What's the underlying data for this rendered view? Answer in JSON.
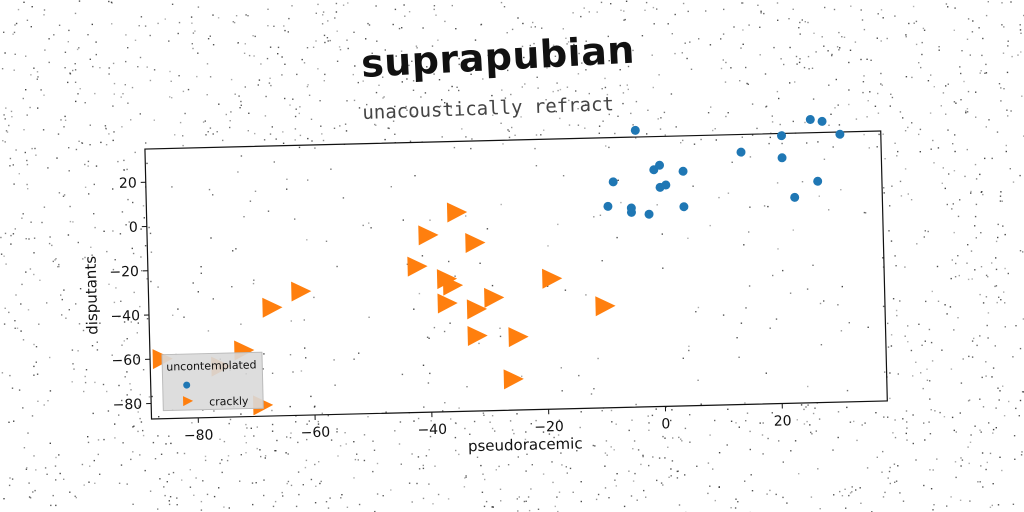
{
  "chart_data": {
    "type": "scatter",
    "title": "suprapubian",
    "subtitle": "unacoustically refract",
    "xlabel": "pseudoracemic",
    "ylabel": "disputants",
    "xlim": [
      -88,
      38
    ],
    "ylim": [
      -87,
      35
    ],
    "xticks": [
      -80,
      -60,
      -40,
      -20,
      0,
      20
    ],
    "yticks": [
      20,
      0,
      -20,
      -40,
      -60,
      -80
    ],
    "grid": false,
    "legend": {
      "title": "uncontemplated",
      "placement": "lower-left"
    },
    "series": [
      {
        "name": "",
        "marker": "circle",
        "color": "#1f77b4",
        "points": [
          [
            -4,
            38
          ],
          [
            -8,
            15
          ],
          [
            -9,
            4
          ],
          [
            -5,
            3
          ],
          [
            -5,
            1
          ],
          [
            -2,
            0
          ],
          [
            -1,
            20
          ],
          [
            0,
            22
          ],
          [
            0,
            12
          ],
          [
            1,
            13
          ],
          [
            4,
            19
          ],
          [
            4,
            3
          ],
          [
            14,
            27
          ],
          [
            21,
            34
          ],
          [
            21,
            24
          ],
          [
            23,
            6
          ],
          [
            27,
            13
          ],
          [
            26,
            41
          ],
          [
            28,
            40
          ],
          [
            31,
            34
          ]
        ]
      },
      {
        "name": "crackly",
        "marker": "triangle-right",
        "color": "#ff7f0e",
        "points": [
          [
            -86,
            -60
          ],
          [
            -76,
            -64
          ],
          [
            -72,
            -57
          ],
          [
            -69,
            -82
          ],
          [
            -67,
            -38
          ],
          [
            -62,
            -31
          ],
          [
            -42,
            -21
          ],
          [
            -40,
            -7
          ],
          [
            -37,
            -27
          ],
          [
            -36,
            -30
          ],
          [
            -37,
            -38
          ],
          [
            -35,
            3
          ],
          [
            -32,
            -11
          ],
          [
            -32,
            -41
          ],
          [
            -32,
            -53
          ],
          [
            -29,
            -36
          ],
          [
            -25,
            -54
          ],
          [
            -26,
            -73
          ],
          [
            -19,
            -28
          ],
          [
            -10,
            -41
          ]
        ]
      }
    ]
  }
}
